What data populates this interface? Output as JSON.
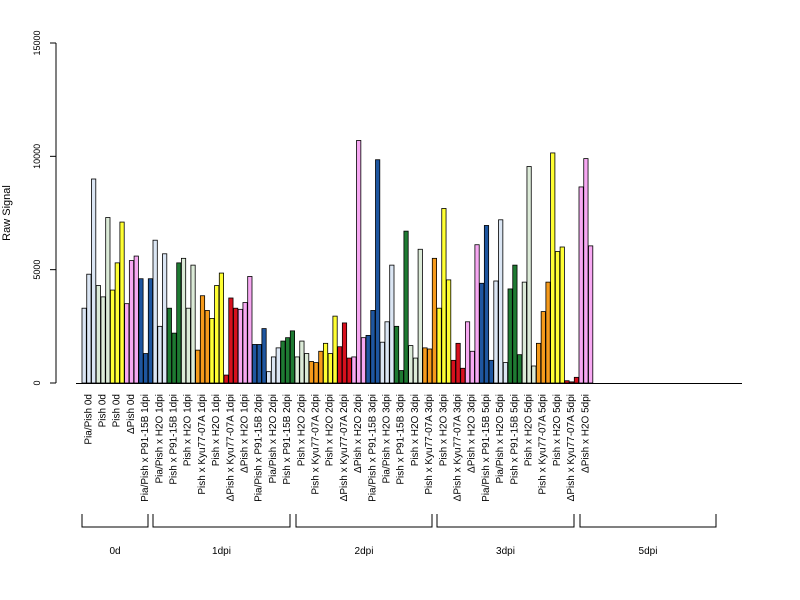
{
  "chart_data": {
    "type": "bar",
    "ylabel": "Raw Signal",
    "ylim": [
      0,
      15000
    ],
    "yticks": [
      0,
      5000,
      10000,
      15000
    ],
    "grid": false,
    "categories": [
      "Pia/Pish 0d",
      "Pish 0d",
      "Pish 0d",
      "ΔPish 0d",
      "Pia/Pish x P91-15B 1dpi",
      "Pia/Pish x H2O 1dpi",
      "Pish x P91-15B 1dpi",
      "Pish x H2O 1dpi",
      "Pish x Kyu77-07A 1dpi",
      "Pish x H2O 1dpi",
      "ΔPish x Kyu77-07A 1dpi",
      "ΔPish x H2O 1dpi",
      "Pia/Pish x P91-15B 2dpi",
      "Pia/Pish x H2O 2dpi",
      "Pish x P91-15B 2dpi",
      "Pish x H2O 2dpi",
      "Pish x Kyu77-07A 2dpi",
      "Pish x H2O 2dpi",
      "ΔPish x Kyu77-07A 2dpi",
      "ΔPish x H2O 2dpi",
      "Pia/Pish x P91-15B 3dpi",
      "Pia/Pish x H2O 3dpi",
      "Pish x P91-15B 3dpi",
      "Pish x H2O 3dpi",
      "Pish x Kyu77-07A 3dpi",
      "Pish x H2O 3dpi",
      "ΔPish x Kyu77-07A 3dpi",
      "ΔPish x H2O 3dpi",
      "Pia/Pish x P91-15B 5dpi",
      "Pia/Pish x H2O 5dpi",
      "Pish x P91-15B 5dpi",
      "Pish x H2O 5dpi",
      "Pish x Kyu77-07A 5dpi",
      "Pish x H2O 5dpi",
      "ΔPish x Kyu77-07A 5dpi",
      "ΔPish x H2O 5dpi"
    ],
    "group_colors": [
      "#dbe6f4",
      "#dcebd8",
      "#ffff33",
      "#f7a8f2",
      "#1e56a0",
      "#dbe6f4",
      "#1e7a32",
      "#dcebd8",
      "#f59a1b",
      "#ffff33",
      "#d7101d",
      "#f7a8f2",
      "#1e56a0",
      "#dbe6f4",
      "#1e7a32",
      "#dcebd8",
      "#f59a1b",
      "#ffff33",
      "#d7101d",
      "#f7a8f2",
      "#1e56a0",
      "#dbe6f4",
      "#1e7a32",
      "#dcebd8",
      "#f59a1b",
      "#ffff33",
      "#d7101d",
      "#f7a8f2",
      "#1e56a0",
      "#dbe6f4",
      "#1e7a32",
      "#dcebd8",
      "#f59a1b",
      "#ffff33",
      "#d7101d",
      "#f7a8f2"
    ],
    "values": [
      [
        3300,
        4800,
        9000
      ],
      [
        4300,
        3800,
        7300
      ],
      [
        4100,
        5300,
        7100
      ],
      [
        3500,
        5400,
        5600
      ],
      [
        4600,
        1300,
        4600
      ],
      [
        6300,
        2500,
        5700
      ],
      [
        3300,
        2200,
        5300
      ],
      [
        5500,
        3300,
        5200
      ],
      [
        1450,
        3850,
        3200
      ],
      [
        2850,
        4300,
        4850
      ],
      [
        350,
        3750,
        3300
      ],
      [
        3250,
        3550,
        4700
      ],
      [
        1700,
        1700,
        2400
      ],
      [
        500,
        1150,
        1550
      ],
      [
        1850,
        2000,
        2300
      ],
      [
        1150,
        1850,
        1300
      ],
      [
        950,
        900,
        1400
      ],
      [
        1750,
        1300,
        2950
      ],
      [
        1600,
        2650,
        1100
      ],
      [
        1150,
        10700,
        2000
      ],
      [
        2100,
        3200,
        9850
      ],
      [
        1800,
        2700,
        5200
      ],
      [
        2500,
        550,
        6700
      ],
      [
        1650,
        1100,
        5900
      ],
      [
        1550,
        1500,
        5500
      ],
      [
        3300,
        7700,
        4550
      ],
      [
        1000,
        1750,
        650
      ],
      [
        2700,
        1400,
        6100
      ],
      [
        4400,
        6950,
        1000
      ],
      [
        4500,
        7200,
        900
      ],
      [
        4150,
        5200,
        1250
      ],
      [
        4450,
        9550,
        750
      ],
      [
        1750,
        3150,
        4450
      ],
      [
        10150,
        5800,
        6000
      ],
      [
        100,
        50,
        250
      ],
      [
        8650,
        9900,
        6050
      ]
    ],
    "groups": [
      {
        "label": "0d",
        "count": 4
      },
      {
        "label": "1dpi",
        "count": 8
      },
      {
        "label": "2dpi",
        "count": 8
      },
      {
        "label": "3dpi",
        "count": 8
      },
      {
        "label": "5dpi",
        "count": 8
      }
    ]
  }
}
